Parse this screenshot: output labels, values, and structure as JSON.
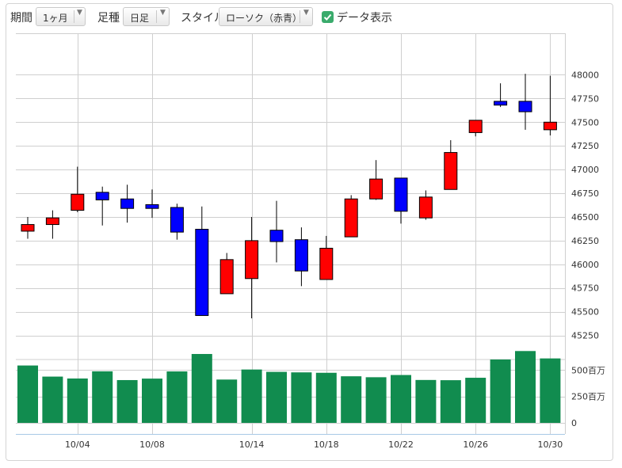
{
  "toolbar": {
    "period_label": "期間",
    "period_value": "1ヶ月",
    "interval_label": "足種",
    "interval_value": "日足",
    "style_label": "スタイル",
    "style_value": "ローソク（赤青）",
    "show_data_label": "データ表示",
    "show_data_checked": true
  },
  "colors": {
    "up": "#ff0000",
    "down": "#0000ff",
    "volume": "#118c4f",
    "grid": "#cfcfcf",
    "checkbox": "#3aab6c"
  },
  "chart_data": {
    "type": "candlestick",
    "price_axis": {
      "ylim": [
        45000,
        48200
      ],
      "ticks": [
        "45250",
        "45500",
        "45750",
        "46000",
        "46250",
        "46500",
        "46750",
        "47000",
        "47250",
        "47500",
        "47750",
        "48000"
      ]
    },
    "volume_axis": {
      "ylim": [
        0,
        700
      ],
      "ticks": [
        "0",
        "250百万",
        "500百万"
      ]
    },
    "x_tick_labels": [
      "10/04",
      "10/08",
      "10/14",
      "10/18",
      "10/22",
      "10/26",
      "10/30"
    ],
    "candles": [
      {
        "open": 46350,
        "close": 46420,
        "high": 46500,
        "low": 46270
      },
      {
        "open": 46420,
        "close": 46490,
        "high": 46570,
        "low": 46270
      },
      {
        "open": 46570,
        "close": 46740,
        "high": 47030,
        "low": 46550
      },
      {
        "open": 46760,
        "close": 46680,
        "high": 46820,
        "low": 46410
      },
      {
        "open": 46690,
        "close": 46590,
        "high": 46840,
        "low": 46440
      },
      {
        "open": 46630,
        "close": 46590,
        "high": 46790,
        "low": 46490
      },
      {
        "open": 46600,
        "close": 46340,
        "high": 46640,
        "low": 46260
      },
      {
        "open": 46370,
        "close": 45460,
        "high": 46610,
        "low": 45460
      },
      {
        "open": 45690,
        "close": 46050,
        "high": 46120,
        "low": 45690
      },
      {
        "open": 45850,
        "close": 46250,
        "high": 46500,
        "low": 45430
      },
      {
        "open": 46360,
        "close": 46240,
        "high": 46670,
        "low": 46020
      },
      {
        "open": 46260,
        "close": 45930,
        "high": 46390,
        "low": 45770
      },
      {
        "open": 45840,
        "close": 46170,
        "high": 46300,
        "low": 45840
      },
      {
        "open": 46290,
        "close": 46690,
        "high": 46730,
        "low": 46290
      },
      {
        "open": 46690,
        "close": 46900,
        "high": 47100,
        "low": 46680
      },
      {
        "open": 46910,
        "close": 46560,
        "high": 46910,
        "low": 46430
      },
      {
        "open": 46490,
        "close": 46710,
        "high": 46780,
        "low": 46470
      },
      {
        "open": 46790,
        "close": 47180,
        "high": 47310,
        "low": 46790
      },
      {
        "open": 47390,
        "close": 47520,
        "high": 47520,
        "low": 47350
      },
      {
        "open": 47720,
        "close": 47680,
        "high": 47910,
        "low": 47660
      },
      {
        "open": 47720,
        "close": 47610,
        "high": 48010,
        "low": 47420
      },
      {
        "open": 47420,
        "close": 47500,
        "high": 47990,
        "low": 47360
      }
    ],
    "volume": [
      543,
      438,
      420,
      488,
      405,
      419,
      487,
      652,
      410,
      505,
      483,
      478,
      474,
      441,
      432,
      453,
      406,
      404,
      427,
      600,
      680,
      610
    ],
    "x_tick_candle_index": [
      2,
      5,
      9,
      12,
      15,
      18,
      21
    ]
  }
}
